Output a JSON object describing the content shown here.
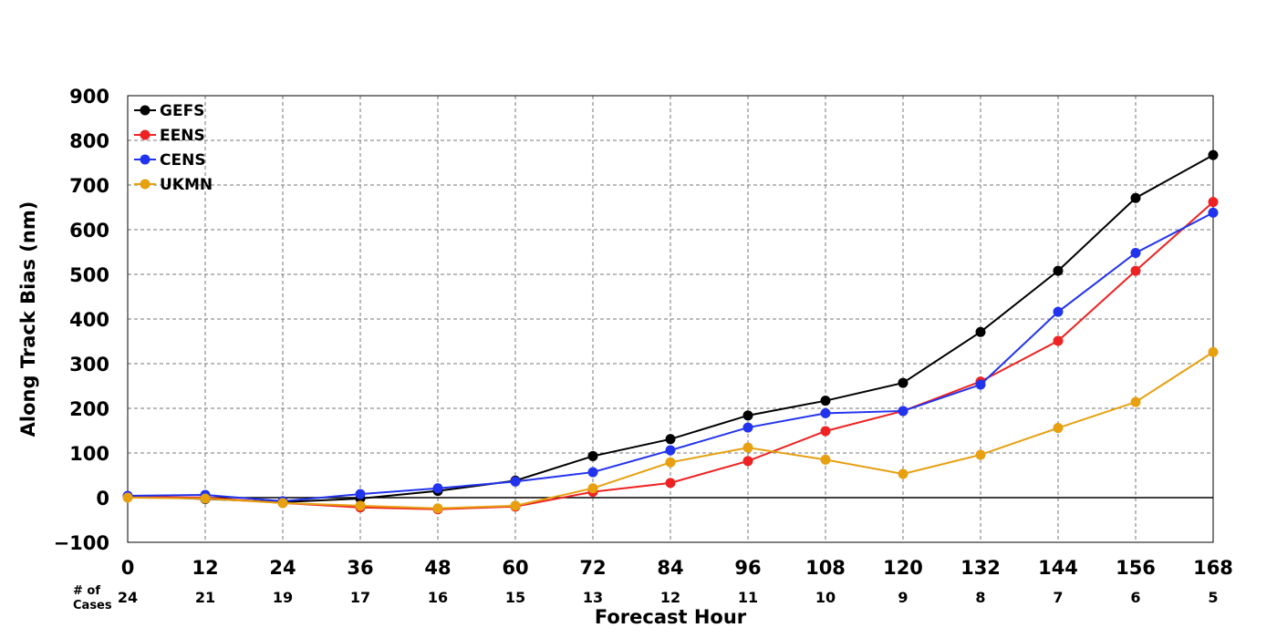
{
  "chart_data": {
    "type": "line",
    "x": [
      0,
      12,
      24,
      36,
      48,
      60,
      72,
      84,
      96,
      108,
      120,
      132,
      144,
      156,
      168
    ],
    "xlabel": "Forecast Hour",
    "ylabel": "Along Track Bias (nm)",
    "xlim": [
      0,
      168
    ],
    "ylim": [
      -100,
      900
    ],
    "yticks": [
      "−100",
      "0",
      "100",
      "200",
      "300",
      "400",
      "500",
      "600",
      "700",
      "800",
      "900"
    ],
    "xticks": [
      "0",
      "12",
      "24",
      "36",
      "48",
      "60",
      "72",
      "84",
      "96",
      "108",
      "120",
      "132",
      "144",
      "156",
      "168"
    ],
    "grid": true,
    "legend_position": "top-left",
    "cases_label": [
      "# of",
      "Cases"
    ],
    "cases": [
      "24",
      "21",
      "19",
      "17",
      "16",
      "15",
      "13",
      "12",
      "11",
      "10",
      "9",
      "8",
      "7",
      "6",
      "5"
    ],
    "series": [
      {
        "name": "GEFS",
        "color": "#000000",
        "values": [
          3,
          -3,
          -10,
          -2,
          15,
          38,
          93,
          131,
          184,
          217,
          257,
          371,
          508,
          671,
          767
        ]
      },
      {
        "name": "EENS",
        "color": "#ee2222",
        "values": [
          2,
          0,
          -12,
          -22,
          -26,
          -20,
          13,
          33,
          82,
          149,
          194,
          260,
          351,
          508,
          662
        ]
      },
      {
        "name": "CENS",
        "color": "#2233ee",
        "values": [
          4,
          6,
          -8,
          8,
          21,
          36,
          57,
          106,
          157,
          189,
          194,
          253,
          416,
          548,
          638
        ]
      },
      {
        "name": "UKMN",
        "color": "#e6a010",
        "values": [
          0,
          -2,
          -12,
          -18,
          -24,
          -18,
          21,
          79,
          112,
          85,
          53,
          96,
          156,
          214,
          326
        ]
      }
    ]
  }
}
